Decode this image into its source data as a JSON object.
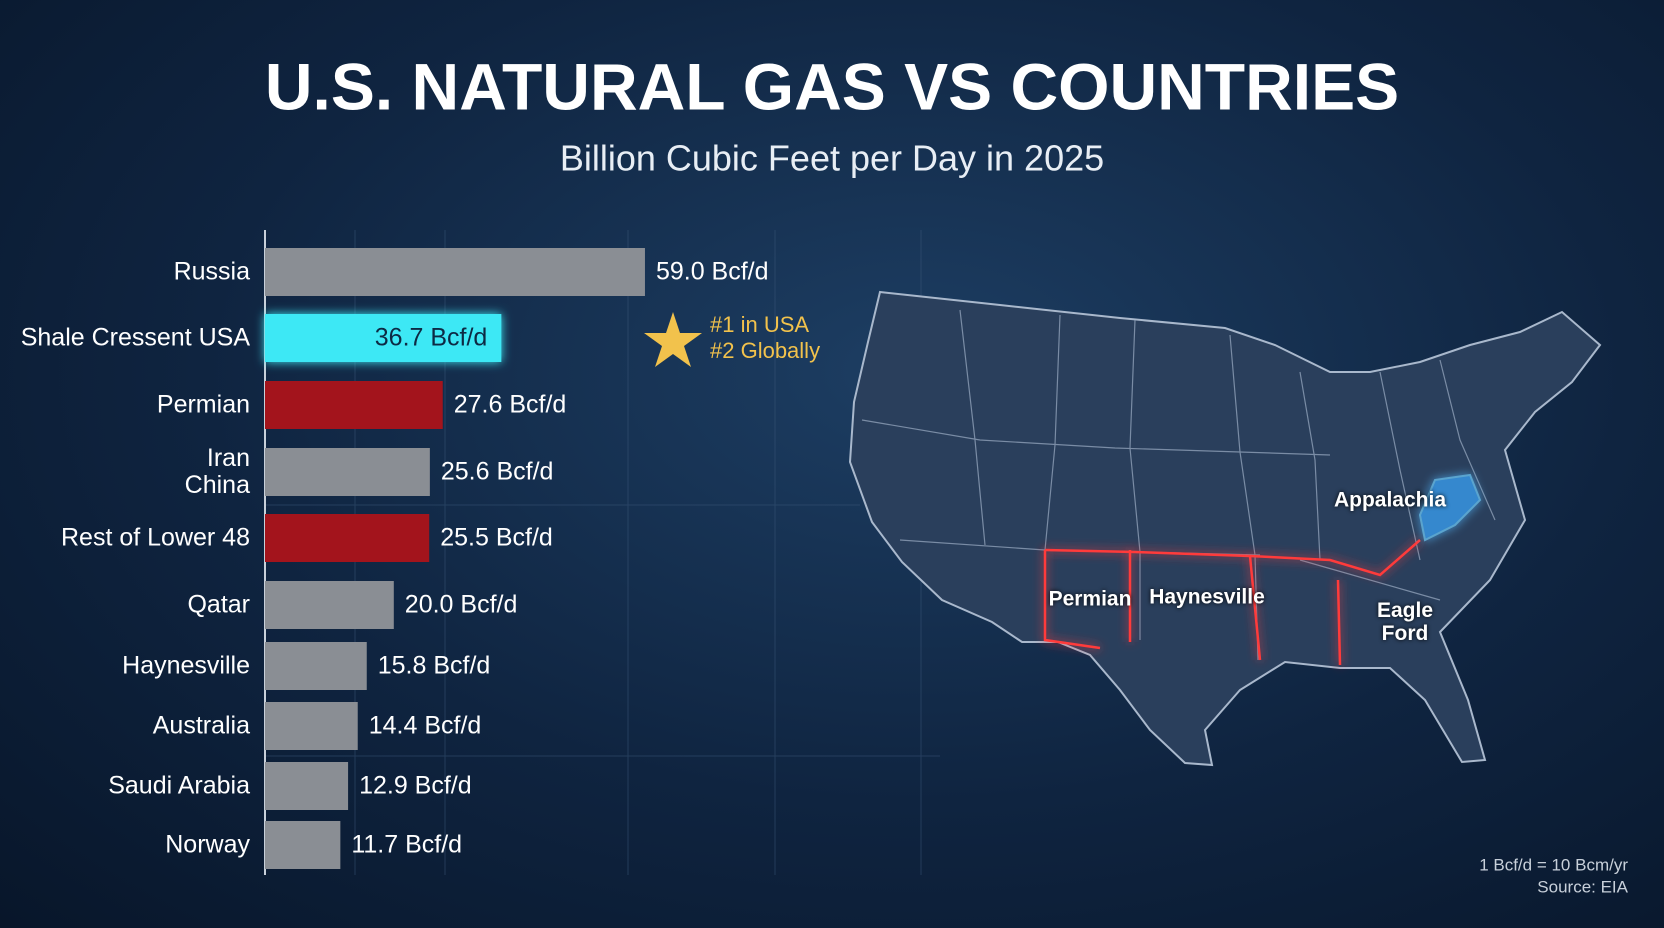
{
  "chart_data": {
    "type": "bar",
    "orientation": "horizontal",
    "title": "U.S. NATURAL GAS VS COUNTRIES",
    "subtitle": "Billion Cubic Feet per Day in 2025",
    "categories": [
      "Russia",
      "Shale Cressent USA",
      "Permian",
      "Iran\nChina",
      "Rest of Lower 48",
      "Qatar",
      "Haynesville",
      "Australia",
      "Saudi Arabia",
      "Norway"
    ],
    "values": [
      59.0,
      36.7,
      27.6,
      25.6,
      25.5,
      20.0,
      15.8,
      14.4,
      12.9,
      11.7
    ],
    "value_labels": [
      "59.0 Bcf/d",
      "36.7 Bcf/d",
      "27.6 Bcf/d",
      "25.6 Bcf/d",
      "25.5 Bcf/d",
      "20.0 Bcf/d",
      "15.8 Bcf/d",
      "14.4 Bcf/d",
      "12.9 Bcf/d",
      "11.7 Bcf/d"
    ],
    "colors": [
      "#8a8e94",
      "#3ee8f5",
      "#a3141c",
      "#8a8e94",
      "#a3141c",
      "#8a8e94",
      "#8a8e94",
      "#8a8e94",
      "#8a8e94",
      "#8a8e94"
    ],
    "label_inside": [
      false,
      true,
      false,
      false,
      false,
      false,
      false,
      false,
      false,
      false
    ],
    "xlim": [
      0,
      100
    ],
    "annotation": [
      "#1 in USA",
      "#2 Globally"
    ]
  },
  "map": {
    "labels": [
      "Appalachia",
      "Permian",
      "Haynesville",
      "Eagle\nFord"
    ]
  },
  "footer": {
    "lines": [
      "1 Bcf/d = 10 Bcm/yr",
      "Source: EIA"
    ]
  }
}
